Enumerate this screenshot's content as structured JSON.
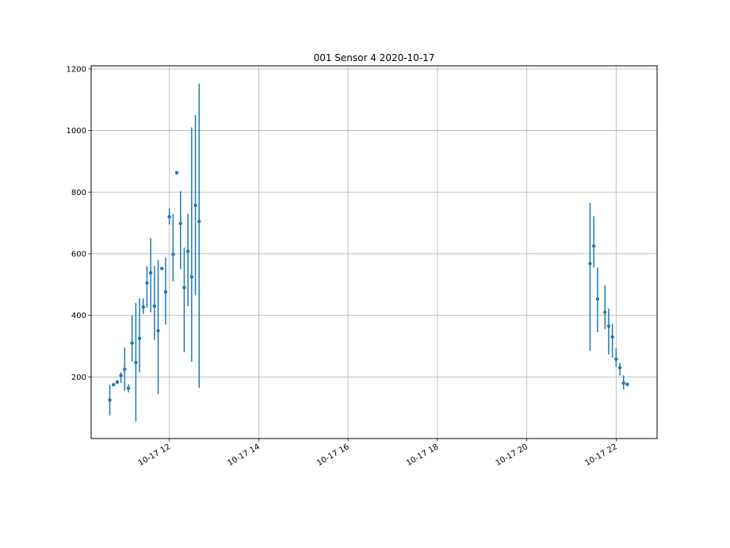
{
  "chart_data": {
    "type": "scatter",
    "title": "001 Sensor 4 2020-10-17",
    "xlabel": "",
    "ylabel": "",
    "x_axis_type": "datetime",
    "xlim": [
      "2020-10-17 10:15",
      "2020-10-17 22:55"
    ],
    "ylim": [
      0,
      1210
    ],
    "grid": true,
    "x_ticks": [
      {
        "value": "2020-10-17 12:00",
        "label": "10-17 12"
      },
      {
        "value": "2020-10-17 14:00",
        "label": "10-17 14"
      },
      {
        "value": "2020-10-17 16:00",
        "label": "10-17 16"
      },
      {
        "value": "2020-10-17 18:00",
        "label": "10-17 18"
      },
      {
        "value": "2020-10-17 20:00",
        "label": "10-17 20"
      },
      {
        "value": "2020-10-17 22:00",
        "label": "10-17 22"
      }
    ],
    "y_ticks": [
      200,
      400,
      600,
      800,
      1000,
      1200
    ],
    "marker_color": "#1f77b4",
    "error_color": "#1f77b4",
    "series": [
      {
        "points": [
          {
            "x": "2020-10-17 10:40",
            "y": 125,
            "yerr_low": 75,
            "yerr_high": 175
          },
          {
            "x": "2020-10-17 10:45",
            "y": 175,
            "yerr_low": 175,
            "yerr_high": 175
          },
          {
            "x": "2020-10-17 10:50",
            "y": 183,
            "yerr_low": 178,
            "yerr_high": 190
          },
          {
            "x": "2020-10-17 10:55",
            "y": 205,
            "yerr_low": 180,
            "yerr_high": 215
          },
          {
            "x": "2020-10-17 11:00",
            "y": 225,
            "yerr_low": 155,
            "yerr_high": 295
          },
          {
            "x": "2020-10-17 11:05",
            "y": 163,
            "yerr_low": 150,
            "yerr_high": 175
          },
          {
            "x": "2020-10-17 11:10",
            "y": 310,
            "yerr_low": 250,
            "yerr_high": 400
          },
          {
            "x": "2020-10-17 11:15",
            "y": 247,
            "yerr_low": 55,
            "yerr_high": 440
          },
          {
            "x": "2020-10-17 11:20",
            "y": 325,
            "yerr_low": 215,
            "yerr_high": 455
          },
          {
            "x": "2020-10-17 11:25",
            "y": 427,
            "yerr_low": 405,
            "yerr_high": 455
          },
          {
            "x": "2020-10-17 11:30",
            "y": 505,
            "yerr_low": 425,
            "yerr_high": 560
          },
          {
            "x": "2020-10-17 11:35",
            "y": 538,
            "yerr_low": 410,
            "yerr_high": 650
          },
          {
            "x": "2020-10-17 11:40",
            "y": 430,
            "yerr_low": 320,
            "yerr_high": 560
          },
          {
            "x": "2020-10-17 11:45",
            "y": 350,
            "yerr_low": 145,
            "yerr_high": 580
          },
          {
            "x": "2020-10-17 11:50",
            "y": 552,
            "yerr_low": 550,
            "yerr_high": 555
          },
          {
            "x": "2020-10-17 11:55",
            "y": 476,
            "yerr_low": 370,
            "yerr_high": 588
          },
          {
            "x": "2020-10-17 12:00",
            "y": 720,
            "yerr_low": 695,
            "yerr_high": 748
          },
          {
            "x": "2020-10-17 12:05",
            "y": 598,
            "yerr_low": 510,
            "yerr_high": 728
          },
          {
            "x": "2020-10-17 12:10",
            "y": 863,
            "yerr_low": 858,
            "yerr_high": 868
          },
          {
            "x": "2020-10-17 12:15",
            "y": 698,
            "yerr_low": 550,
            "yerr_high": 803
          },
          {
            "x": "2020-10-17 12:20",
            "y": 490,
            "yerr_low": 280,
            "yerr_high": 620
          },
          {
            "x": "2020-10-17 12:25",
            "y": 608,
            "yerr_low": 430,
            "yerr_high": 730
          },
          {
            "x": "2020-10-17 12:30",
            "y": 525,
            "yerr_low": 250,
            "yerr_high": 1010
          },
          {
            "x": "2020-10-17 12:35",
            "y": 757,
            "yerr_low": 465,
            "yerr_high": 1050
          },
          {
            "x": "2020-10-17 12:40",
            "y": 705,
            "yerr_low": 165,
            "yerr_high": 1152
          },
          {
            "x": "2020-10-17 21:25",
            "y": 568,
            "yerr_low": 285,
            "yerr_high": 765
          },
          {
            "x": "2020-10-17 21:30",
            "y": 625,
            "yerr_low": 555,
            "yerr_high": 722
          },
          {
            "x": "2020-10-17 21:35",
            "y": 453,
            "yerr_low": 345,
            "yerr_high": 555
          },
          {
            "x": "2020-10-17 21:45",
            "y": 410,
            "yerr_low": 355,
            "yerr_high": 498
          },
          {
            "x": "2020-10-17 21:50",
            "y": 365,
            "yerr_low": 273,
            "yerr_high": 422
          },
          {
            "x": "2020-10-17 21:55",
            "y": 330,
            "yerr_low": 262,
            "yerr_high": 373
          },
          {
            "x": "2020-10-17 22:00",
            "y": 258,
            "yerr_low": 232,
            "yerr_high": 295
          },
          {
            "x": "2020-10-17 22:05",
            "y": 230,
            "yerr_low": 205,
            "yerr_high": 245
          },
          {
            "x": "2020-10-17 22:10",
            "y": 180,
            "yerr_low": 160,
            "yerr_high": 205
          },
          {
            "x": "2020-10-17 22:15",
            "y": 176,
            "yerr_low": 170,
            "yerr_high": 182
          }
        ]
      }
    ]
  }
}
